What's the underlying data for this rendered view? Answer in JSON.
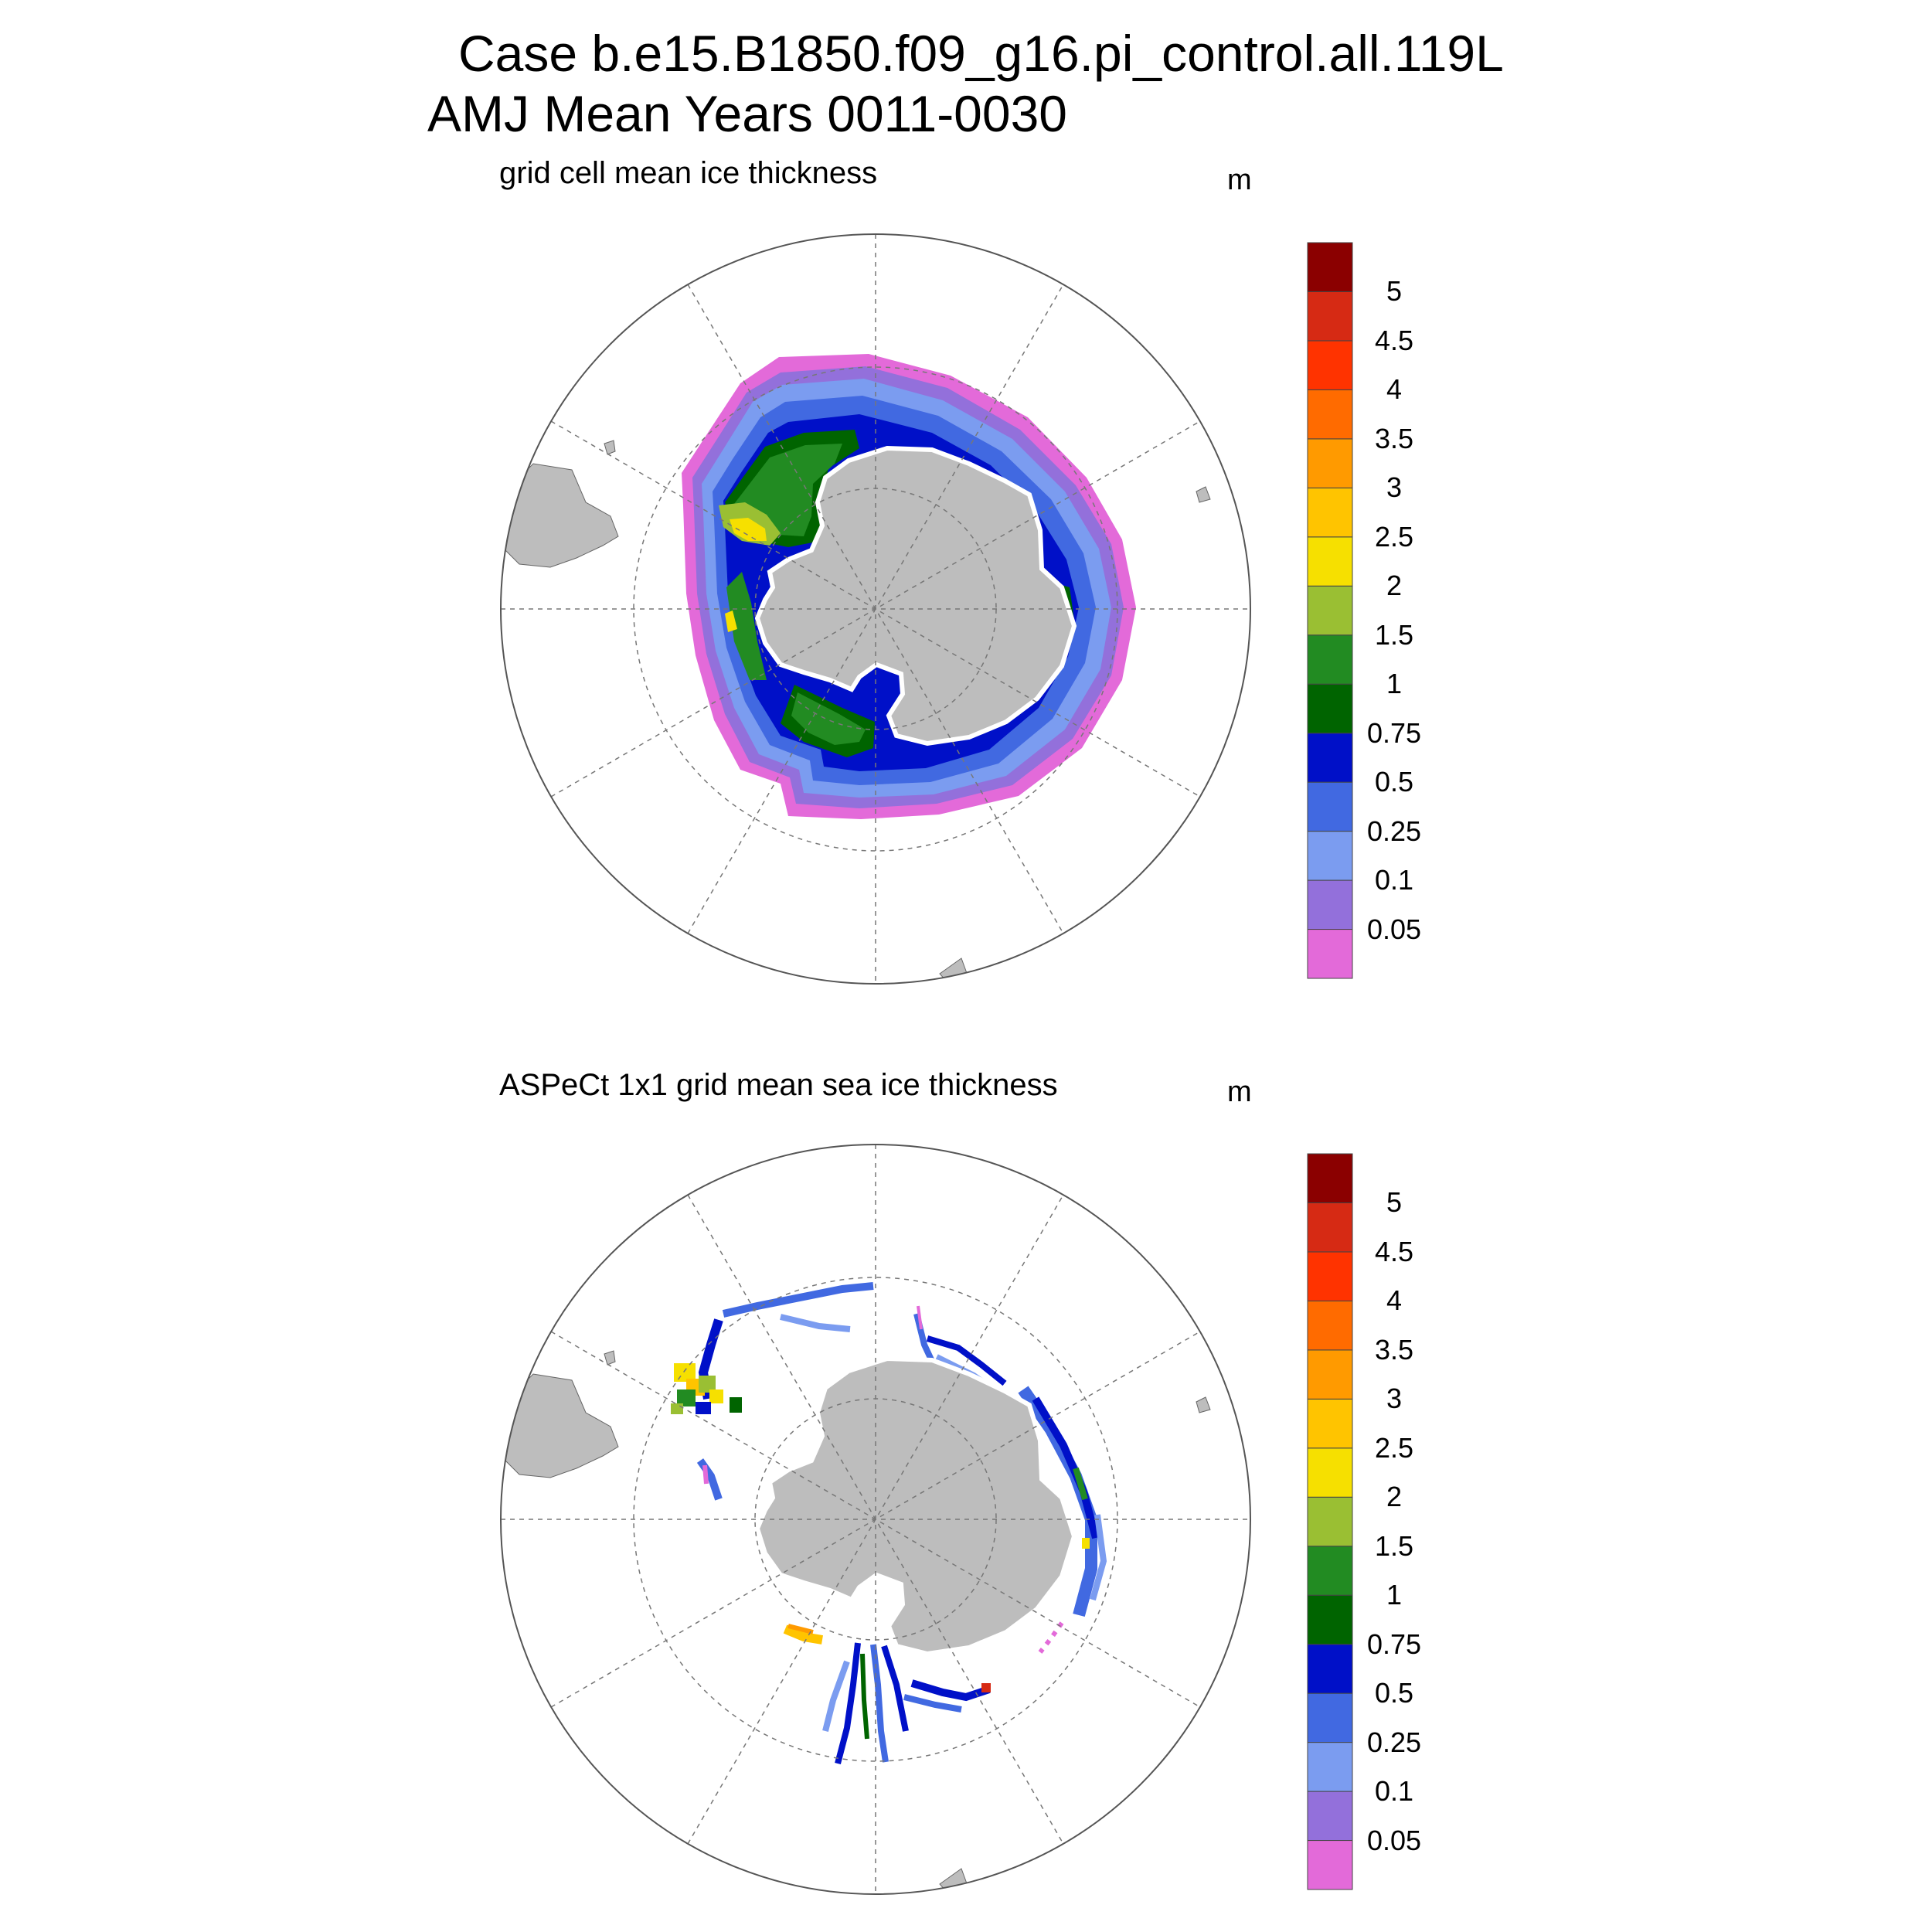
{
  "title": {
    "line1": "Case b.e15.B1850.f09_g16.pi_control.all.119L",
    "line2": "AMJ Mean   Years 0011-0030"
  },
  "panels": [
    {
      "id": "model",
      "subtitle": "grid cell mean ice thickness",
      "unit": "m"
    },
    {
      "id": "obs",
      "subtitle": "ASPeCt 1x1 grid mean sea ice thickness",
      "unit": "m"
    }
  ],
  "colorbar": {
    "labels": [
      "0.05",
      "0.1",
      "0.25",
      "0.5",
      "0.75",
      "1",
      "1.5",
      "2",
      "2.5",
      "3",
      "3.5",
      "4",
      "4.5",
      "5"
    ],
    "colors": [
      "#e36ad9",
      "#9370db",
      "#7b9cf0",
      "#4169e1",
      "#0010c8",
      "#006400",
      "#228b22",
      "#9abf33",
      "#f6e000",
      "#ffc400",
      "#ff9a00",
      "#ff6b00",
      "#ff3300",
      "#d62a14",
      "#8b0000"
    ]
  },
  "colors": {
    "land": "#bdbdbd",
    "grid": "#777777"
  }
}
